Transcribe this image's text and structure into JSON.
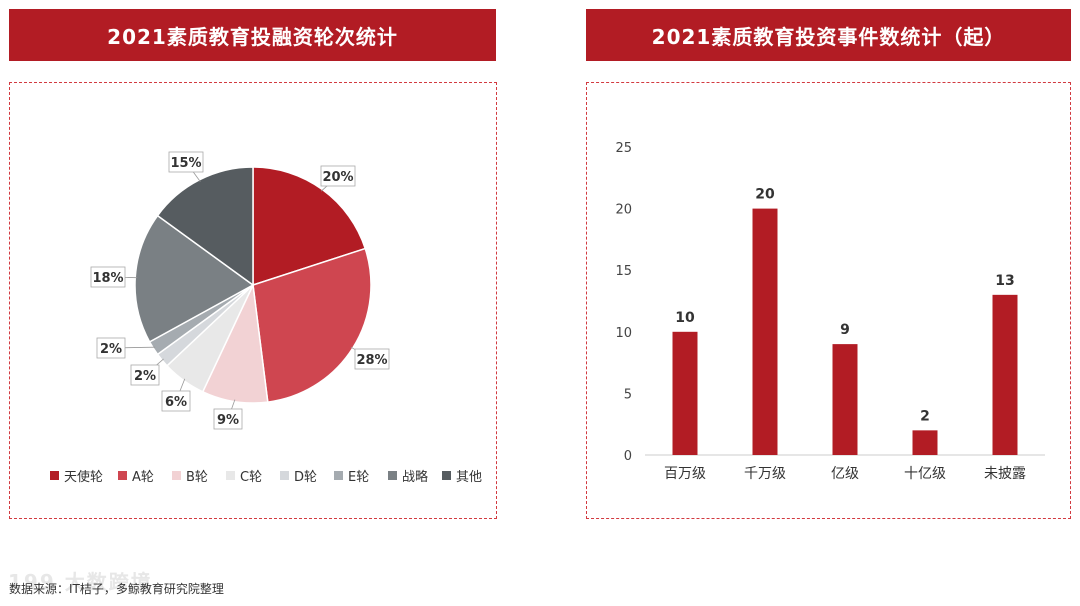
{
  "left_title": "2021素质教育投融资轮次统计",
  "right_title": "2021素质教育投资事件数统计（起）",
  "source_note": "数据来源：IT桔子，多鲸教育研究院整理",
  "watermark": "199 大数跨境",
  "colors": {
    "banner": "#b21c24",
    "border": "#d23a40",
    "bar": "#b21c24"
  },
  "chart_data": [
    {
      "type": "pie",
      "title": "",
      "slices": [
        {
          "label": "天使轮",
          "value": 20,
          "display": "20%",
          "color": "#b21c24"
        },
        {
          "label": "A轮",
          "value": 28,
          "display": "28%",
          "color": "#cf4650"
        },
        {
          "label": "B轮",
          "value": 9,
          "display": "9%",
          "color": "#f2d2d4"
        },
        {
          "label": "C轮",
          "value": 6,
          "display": "6%",
          "color": "#e8e8e8"
        },
        {
          "label": "D轮",
          "value": 2,
          "display": "2%",
          "color": "#d5d8dc"
        },
        {
          "label": "E轮",
          "value": 2,
          "display": "2%",
          "color": "#a5abb0"
        },
        {
          "label": "战略",
          "value": 18,
          "display": "18%",
          "color": "#7a8084"
        },
        {
          "label": "其他",
          "value": 15,
          "display": "15%",
          "color": "#565c60"
        }
      ],
      "legend_position": "bottom"
    },
    {
      "type": "bar",
      "title": "",
      "categories": [
        "百万级",
        "千万级",
        "亿级",
        "十亿级",
        "未披露"
      ],
      "values": [
        10,
        20,
        9,
        2,
        13
      ],
      "ylim": [
        0,
        25
      ],
      "yticks": [
        0,
        5,
        10,
        15,
        20,
        25
      ],
      "grid": false,
      "data_labels": true
    }
  ]
}
